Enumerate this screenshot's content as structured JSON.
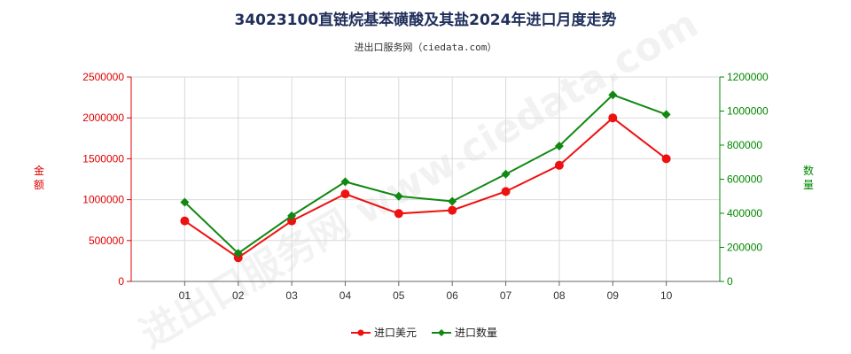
{
  "chart_data": {
    "type": "line",
    "title": "34023100直链烷基苯磺酸及其盐2024年进口月度走势",
    "subtitle": "进出口服务网（ciedata.com）",
    "categories": [
      "01",
      "02",
      "03",
      "04",
      "05",
      "06",
      "07",
      "08",
      "09",
      "10"
    ],
    "y_left": {
      "label": "金额",
      "ylim": [
        0,
        2500000
      ],
      "ticks": [
        "0",
        "500000",
        "1000000",
        "1500000",
        "2000000",
        "2500000"
      ],
      "color": "#dd0000"
    },
    "y_right": {
      "label": "数量",
      "ylim": [
        0,
        1200000
      ],
      "ticks": [
        "0",
        "200000",
        "400000",
        "600000",
        "800000",
        "1000000",
        "1200000"
      ],
      "color": "#008800"
    },
    "series": [
      {
        "name": "进口美元",
        "axis": "left",
        "color": "#ee1111",
        "marker": "circle",
        "values": [
          740000,
          290000,
          740000,
          1070000,
          830000,
          870000,
          1100000,
          1420000,
          2000000,
          1500000
        ]
      },
      {
        "name": "进口数量",
        "axis": "right",
        "color": "#118811",
        "marker": "diamond",
        "values": [
          465000,
          165000,
          385000,
          585000,
          500000,
          470000,
          630000,
          795000,
          1095000,
          980000
        ]
      }
    ],
    "grid": true,
    "legend_position": "bottom-center"
  }
}
